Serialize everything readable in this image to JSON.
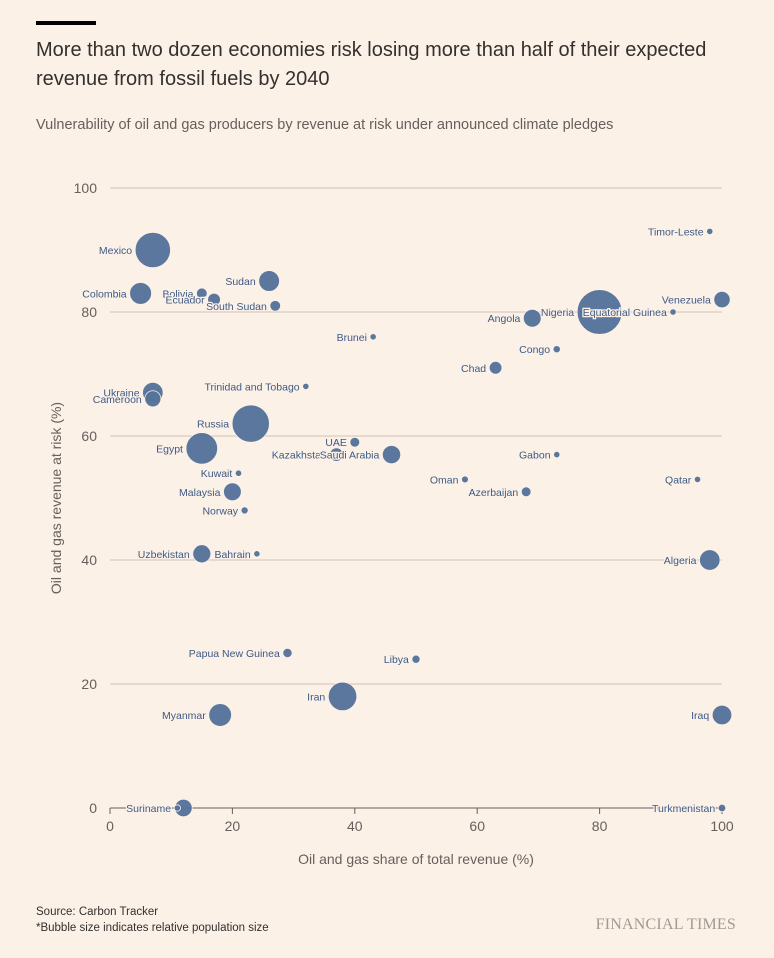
{
  "header": {
    "title": "More than two dozen economies risk losing more than half of their expected revenue from fossil fuels by 2040",
    "subtitle": "Vulnerability of oil and gas producers by revenue at risk under announced climate pledges"
  },
  "footer": {
    "source": "Source: Carbon Tracker",
    "note": "*Bubble size indicates relative population size",
    "brand": "FINANCIAL TIMES"
  },
  "colors": {
    "background": "#fcf1e7",
    "bubble": "#56739a",
    "label": "#3d5a86",
    "grid": "#cfc4ba"
  },
  "chart_data": {
    "type": "scatter",
    "title": "More than two dozen economies risk losing more than half of their expected revenue from fossil fuels by 2040",
    "subtitle": "Vulnerability of oil and gas producers by revenue at risk under announced climate pledges",
    "xlabel": "Oil and gas share of total revenue (%)",
    "ylabel": "Oil and gas revenue at risk (%)",
    "xlim": [
      0,
      100
    ],
    "ylim": [
      0,
      100
    ],
    "xticks": [
      "0",
      "20",
      "40",
      "60",
      "80",
      "100"
    ],
    "yticks": [
      "0",
      "20",
      "40",
      "60",
      "80",
      "100"
    ],
    "grid": "horizontal",
    "size_encoding": "relative population size",
    "points": [
      {
        "name": "Mexico",
        "x": 7,
        "y": 90,
        "size": 130,
        "label_side": "left"
      },
      {
        "name": "Colombia",
        "x": 5,
        "y": 83,
        "size": 50,
        "label_side": "left"
      },
      {
        "name": "Bolivia",
        "x": 15,
        "y": 83,
        "size": 12,
        "label_side": "left"
      },
      {
        "name": "Ecuador",
        "x": 17,
        "y": 82,
        "size": 17,
        "label_side": "left"
      },
      {
        "name": "Sudan",
        "x": 26,
        "y": 85,
        "size": 45,
        "label_side": "left"
      },
      {
        "name": "South Sudan",
        "x": 27,
        "y": 81,
        "size": 12,
        "label_side": "left"
      },
      {
        "name": "Timor-Leste",
        "x": 98,
        "y": 93,
        "size": 1.3,
        "label_side": "left"
      },
      {
        "name": "Venezuela",
        "x": 100,
        "y": 82,
        "size": 28,
        "label_side": "left"
      },
      {
        "name": "Nigeria",
        "x": 80,
        "y": 80,
        "size": 210,
        "label_side": "left"
      },
      {
        "name": "Equatorial Guinea",
        "x": 92,
        "y": 80,
        "size": 1.4,
        "label_side": "left"
      },
      {
        "name": "Angola",
        "x": 69,
        "y": 79,
        "size": 33,
        "label_side": "left"
      },
      {
        "name": "Brunei",
        "x": 43,
        "y": 76,
        "size": 0.5,
        "label_side": "left"
      },
      {
        "name": "Congo",
        "x": 73,
        "y": 74,
        "size": 5.5,
        "label_side": "left"
      },
      {
        "name": "Chad",
        "x": 63,
        "y": 71,
        "size": 17,
        "label_side": "left"
      },
      {
        "name": "Ukraine",
        "x": 7,
        "y": 67,
        "size": 44,
        "label_side": "left"
      },
      {
        "name": "Cameroon",
        "x": 7,
        "y": 66,
        "size": 27,
        "label_side": "left"
      },
      {
        "name": "Trinidad and Tobago",
        "x": 32,
        "y": 68,
        "size": 1.4,
        "label_side": "left"
      },
      {
        "name": "Russia",
        "x": 23,
        "y": 62,
        "size": 145,
        "label_side": "left"
      },
      {
        "name": "Egypt",
        "x": 15,
        "y": 58,
        "size": 104,
        "label_side": "left"
      },
      {
        "name": "UAE",
        "x": 40,
        "y": 59,
        "size": 10,
        "label_side": "left"
      },
      {
        "name": "Kazakhstan",
        "x": 37,
        "y": 57,
        "size": 19,
        "label_side": "left"
      },
      {
        "name": "Saudi Arabia",
        "x": 46,
        "y": 57,
        "size": 35,
        "label_side": "left"
      },
      {
        "name": "Gabon",
        "x": 73,
        "y": 57,
        "size": 2.2,
        "label_side": "left"
      },
      {
        "name": "Kuwait",
        "x": 21,
        "y": 54,
        "size": 4.3,
        "label_side": "left"
      },
      {
        "name": "Oman",
        "x": 58,
        "y": 53,
        "size": 5,
        "label_side": "left"
      },
      {
        "name": "Qatar",
        "x": 96,
        "y": 53,
        "size": 2.9,
        "label_side": "left"
      },
      {
        "name": "Malaysia",
        "x": 20,
        "y": 51,
        "size": 33,
        "label_side": "left"
      },
      {
        "name": "Azerbaijan",
        "x": 68,
        "y": 51,
        "size": 10,
        "label_side": "left"
      },
      {
        "name": "Norway",
        "x": 22,
        "y": 48,
        "size": 5.4,
        "label_side": "left"
      },
      {
        "name": "Uzbekistan",
        "x": 15,
        "y": 41,
        "size": 34,
        "label_side": "left"
      },
      {
        "name": "Bahrain",
        "x": 24,
        "y": 41,
        "size": 1.7,
        "label_side": "left"
      },
      {
        "name": "Algeria",
        "x": 98,
        "y": 40,
        "size": 44,
        "label_side": "left"
      },
      {
        "name": "Papua New Guinea",
        "x": 29,
        "y": 25,
        "size": 9,
        "label_side": "left"
      },
      {
        "name": "Libya",
        "x": 50,
        "y": 24,
        "size": 7,
        "label_side": "left"
      },
      {
        "name": "Iran",
        "x": 38,
        "y": 18,
        "size": 85,
        "label_side": "left"
      },
      {
        "name": "Myanmar",
        "x": 18,
        "y": 15,
        "size": 54,
        "label_side": "left"
      },
      {
        "name": "Iraq",
        "x": 100,
        "y": 15,
        "size": 40,
        "label_side": "left"
      },
      {
        "name": "Suriname",
        "x": 11,
        "y": 0,
        "size": 0.6,
        "label_side": "left"
      },
      {
        "name": "Suriname (population bubble)",
        "x": 12,
        "y": 0,
        "size": 32,
        "label_side": "none"
      },
      {
        "name": "Turkmenistan",
        "x": 100,
        "y": 0,
        "size": 6,
        "label_side": "left"
      }
    ]
  }
}
